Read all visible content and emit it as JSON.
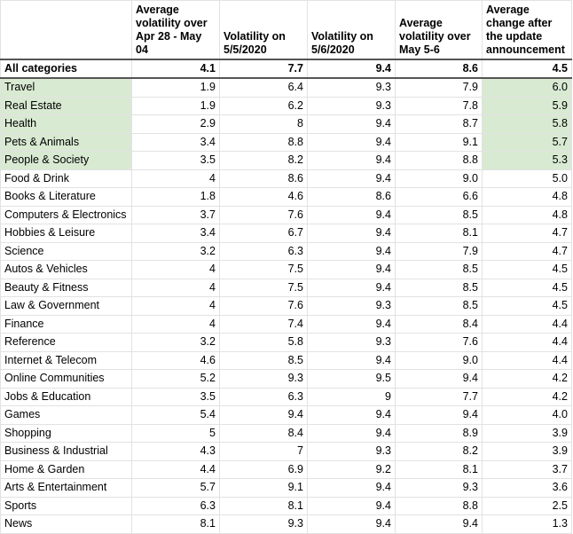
{
  "headers": [
    "",
    "Average volatility over Apr 28 - May 04",
    "Volatility on 5/5/2020",
    "Volatility on 5/6/2020",
    "Average volatility over May 5-6",
    "Average change after the update announcement"
  ],
  "highlight_color": "#d9ead3",
  "summary_row": [
    "All categories",
    "4.1",
    "7.7",
    "9.4",
    "8.6",
    "4.5"
  ],
  "rows": [
    {
      "cells": [
        "Travel",
        "1.9",
        "6.4",
        "9.3",
        "7.9",
        "6.0"
      ],
      "highlighted": true
    },
    {
      "cells": [
        "Real Estate",
        "1.9",
        "6.2",
        "9.3",
        "7.8",
        "5.9"
      ],
      "highlighted": true
    },
    {
      "cells": [
        "Health",
        "2.9",
        "8",
        "9.4",
        "8.7",
        "5.8"
      ],
      "highlighted": true
    },
    {
      "cells": [
        "Pets & Animals",
        "3.4",
        "8.8",
        "9.4",
        "9.1",
        "5.7"
      ],
      "highlighted": true
    },
    {
      "cells": [
        "People & Society",
        "3.5",
        "8.2",
        "9.4",
        "8.8",
        "5.3"
      ],
      "highlighted": true
    },
    {
      "cells": [
        "Food & Drink",
        "4",
        "8.6",
        "9.4",
        "9.0",
        "5.0"
      ],
      "highlighted": false
    },
    {
      "cells": [
        "Books & Literature",
        "1.8",
        "4.6",
        "8.6",
        "6.6",
        "4.8"
      ],
      "highlighted": false
    },
    {
      "cells": [
        "Computers & Electronics",
        "3.7",
        "7.6",
        "9.4",
        "8.5",
        "4.8"
      ],
      "highlighted": false
    },
    {
      "cells": [
        "Hobbies & Leisure",
        "3.4",
        "6.7",
        "9.4",
        "8.1",
        "4.7"
      ],
      "highlighted": false
    },
    {
      "cells": [
        "Science",
        "3.2",
        "6.3",
        "9.4",
        "7.9",
        "4.7"
      ],
      "highlighted": false
    },
    {
      "cells": [
        "Autos & Vehicles",
        "4",
        "7.5",
        "9.4",
        "8.5",
        "4.5"
      ],
      "highlighted": false
    },
    {
      "cells": [
        "Beauty & Fitness",
        "4",
        "7.5",
        "9.4",
        "8.5",
        "4.5"
      ],
      "highlighted": false
    },
    {
      "cells": [
        "Law & Government",
        "4",
        "7.6",
        "9.3",
        "8.5",
        "4.5"
      ],
      "highlighted": false
    },
    {
      "cells": [
        "Finance",
        "4",
        "7.4",
        "9.4",
        "8.4",
        "4.4"
      ],
      "highlighted": false
    },
    {
      "cells": [
        "Reference",
        "3.2",
        "5.8",
        "9.3",
        "7.6",
        "4.4"
      ],
      "highlighted": false
    },
    {
      "cells": [
        "Internet & Telecom",
        "4.6",
        "8.5",
        "9.4",
        "9.0",
        "4.4"
      ],
      "highlighted": false
    },
    {
      "cells": [
        "Online Communities",
        "5.2",
        "9.3",
        "9.5",
        "9.4",
        "4.2"
      ],
      "highlighted": false
    },
    {
      "cells": [
        "Jobs & Education",
        "3.5",
        "6.3",
        "9",
        "7.7",
        "4.2"
      ],
      "highlighted": false
    },
    {
      "cells": [
        "Games",
        "5.4",
        "9.4",
        "9.4",
        "9.4",
        "4.0"
      ],
      "highlighted": false
    },
    {
      "cells": [
        "Shopping",
        "5",
        "8.4",
        "9.4",
        "8.9",
        "3.9"
      ],
      "highlighted": false
    },
    {
      "cells": [
        "Business & Industrial",
        "4.3",
        "7",
        "9.3",
        "8.2",
        "3.9"
      ],
      "highlighted": false
    },
    {
      "cells": [
        "Home & Garden",
        "4.4",
        "6.9",
        "9.2",
        "8.1",
        "3.7"
      ],
      "highlighted": false
    },
    {
      "cells": [
        "Arts & Entertainment",
        "5.7",
        "9.1",
        "9.4",
        "9.3",
        "3.6"
      ],
      "highlighted": false
    },
    {
      "cells": [
        "Sports",
        "6.3",
        "8.1",
        "9.4",
        "8.8",
        "2.5"
      ],
      "highlighted": false
    },
    {
      "cells": [
        "News",
        "8.1",
        "9.3",
        "9.4",
        "9.4",
        "1.3"
      ],
      "highlighted": false
    }
  ]
}
